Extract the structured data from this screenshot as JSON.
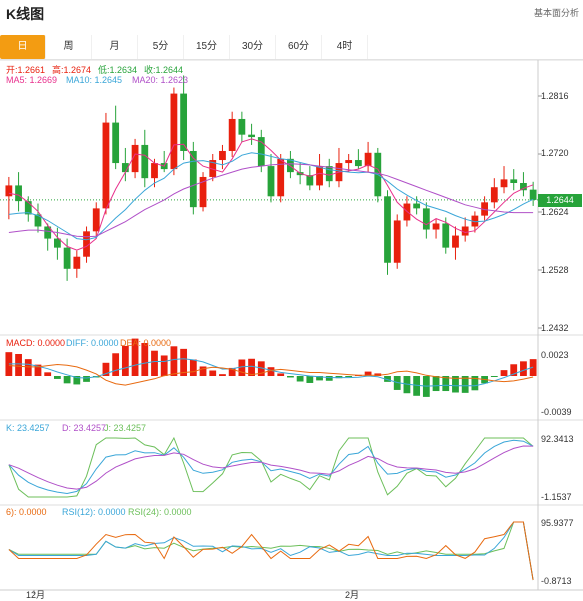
{
  "header": {
    "title": "K线图",
    "right_link": "基本面分析"
  },
  "tabs": [
    {
      "label": "日",
      "active": true
    },
    {
      "label": "周",
      "active": false
    },
    {
      "label": "月",
      "active": false
    },
    {
      "label": "5分",
      "active": false
    },
    {
      "label": "15分",
      "active": false
    },
    {
      "label": "30分",
      "active": false
    },
    {
      "label": "60分",
      "active": false
    },
    {
      "label": "4时",
      "active": false
    }
  ],
  "colors": {
    "up": "#e8200e",
    "down": "#27a33a",
    "ma5": "#e8308c",
    "ma10": "#3aa6d8",
    "ma20": "#b050c8",
    "active_tab": "#f39c12"
  },
  "ohlc": {
    "open": "开:1.2661",
    "high": "高:1.2674",
    "low": "低:1.2634",
    "close": "收:1.2644"
  },
  "ma": {
    "ma5": "MA5: 1.2669",
    "ma10": "MA10: 1.2645",
    "ma20": "MA20: 1.2623"
  },
  "price_axis": [
    "1.2816",
    "1.2720",
    "1.2624",
    "1.2528",
    "1.2432"
  ],
  "last_price": "1.2644",
  "macd": {
    "macd": "MACD: 0.0000",
    "diff": "DIFF: 0.0000",
    "dea": "DEA: 0.0000",
    "axis": [
      "0.0023",
      "-0.0039"
    ]
  },
  "kdj": {
    "k": "K: 23.4257",
    "d": "D: 23.4257",
    "j": "J: 23.4257",
    "axis": [
      "92.3413",
      "-1.1537"
    ]
  },
  "rsi": {
    "rsi6": "6): 0.0000",
    "rsi12": "RSI(12): 0.0000",
    "rsi24": "RSI(24): 0.0000",
    "axis": [
      "95.9377",
      "-0.8713"
    ]
  },
  "x_axis": [
    "12月",
    "2月"
  ],
  "chart_data": {
    "type": "candlestick",
    "price_range": [
      1.2432,
      1.2816
    ],
    "candles": [
      [
        1.265,
        1.2682,
        1.2612,
        1.2668
      ],
      [
        1.2668,
        1.269,
        1.2625,
        1.2642
      ],
      [
        1.2642,
        1.265,
        1.2608,
        1.262
      ],
      [
        1.262,
        1.2638,
        1.259,
        1.26
      ],
      [
        1.26,
        1.2605,
        1.256,
        1.258
      ],
      [
        1.258,
        1.2598,
        1.2545,
        1.2565
      ],
      [
        1.2565,
        1.258,
        1.251,
        1.253
      ],
      [
        1.253,
        1.256,
        1.2515,
        1.255
      ],
      [
        1.255,
        1.26,
        1.254,
        1.2592
      ],
      [
        1.2592,
        1.264,
        1.258,
        1.263
      ],
      [
        1.263,
        1.2788,
        1.262,
        1.2772
      ],
      [
        1.2772,
        1.28,
        1.2695,
        1.2705
      ],
      [
        1.2705,
        1.273,
        1.2675,
        1.269
      ],
      [
        1.269,
        1.2745,
        1.268,
        1.2735
      ],
      [
        1.2735,
        1.276,
        1.2665,
        1.268
      ],
      [
        1.268,
        1.2712,
        1.2665,
        1.2705
      ],
      [
        1.2705,
        1.2725,
        1.269,
        1.2695
      ],
      [
        1.2695,
        1.283,
        1.2685,
        1.282
      ],
      [
        1.282,
        1.285,
        1.271,
        1.2725
      ],
      [
        1.2725,
        1.274,
        1.262,
        1.2632
      ],
      [
        1.2632,
        1.269,
        1.2625,
        1.2682
      ],
      [
        1.2682,
        1.272,
        1.2675,
        1.271
      ],
      [
        1.271,
        1.2735,
        1.2695,
        1.2725
      ],
      [
        1.2725,
        1.279,
        1.2715,
        1.2778
      ],
      [
        1.2778,
        1.279,
        1.274,
        1.2752
      ],
      [
        1.2752,
        1.277,
        1.2735,
        1.2748
      ],
      [
        1.2748,
        1.276,
        1.269,
        1.27
      ],
      [
        1.27,
        1.272,
        1.264,
        1.265
      ],
      [
        1.265,
        1.272,
        1.264,
        1.2712
      ],
      [
        1.2712,
        1.2725,
        1.268,
        1.269
      ],
      [
        1.269,
        1.2705,
        1.267,
        1.2685
      ],
      [
        1.2685,
        1.27,
        1.266,
        1.2668
      ],
      [
        1.2668,
        1.272,
        1.266,
        1.27
      ],
      [
        1.27,
        1.2712,
        1.2665,
        1.2675
      ],
      [
        1.2675,
        1.273,
        1.2665,
        1.2705
      ],
      [
        1.2705,
        1.272,
        1.269,
        1.271
      ],
      [
        1.271,
        1.2728,
        1.2695,
        1.27
      ],
      [
        1.27,
        1.274,
        1.269,
        1.2722
      ],
      [
        1.2722,
        1.273,
        1.264,
        1.265
      ],
      [
        1.265,
        1.266,
        1.252,
        1.254
      ],
      [
        1.254,
        1.262,
        1.253,
        1.261
      ],
      [
        1.261,
        1.265,
        1.26,
        1.2638
      ],
      [
        1.2638,
        1.265,
        1.262,
        1.263
      ],
      [
        1.263,
        1.264,
        1.258,
        1.2595
      ],
      [
        1.2595,
        1.2612,
        1.258,
        1.2605
      ],
      [
        1.2605,
        1.2615,
        1.2555,
        1.2565
      ],
      [
        1.2565,
        1.26,
        1.2545,
        1.2585
      ],
      [
        1.2585,
        1.2615,
        1.2575,
        1.26
      ],
      [
        1.26,
        1.2625,
        1.259,
        1.2618
      ],
      [
        1.2618,
        1.265,
        1.261,
        1.264
      ],
      [
        1.264,
        1.268,
        1.263,
        1.2665
      ],
      [
        1.2665,
        1.27,
        1.2655,
        1.2678
      ],
      [
        1.2678,
        1.2695,
        1.266,
        1.2672
      ],
      [
        1.2672,
        1.269,
        1.265,
        1.266
      ],
      [
        1.2661,
        1.2674,
        1.2634,
        1.2644
      ]
    ],
    "ma5": [
      1.2655,
      1.2652,
      1.264,
      1.2625,
      1.2602,
      1.2582,
      1.2567,
      1.2561,
      1.2567,
      1.258,
      1.2628,
      1.2662,
      1.269,
      1.272,
      1.2718,
      1.2705,
      1.27,
      1.2735,
      1.2736,
      1.2713,
      1.27,
      1.2695,
      1.269,
      1.2712,
      1.274,
      1.2745,
      1.274,
      1.2726,
      1.271,
      1.27,
      1.2688,
      1.2683,
      1.2688,
      1.2685,
      1.269,
      1.2692,
      1.2695,
      1.2702,
      1.2695,
      1.2668,
      1.264,
      1.2625,
      1.2612,
      1.2603,
      1.2613,
      1.2607,
      1.2597,
      1.259,
      1.2593,
      1.2608,
      1.2624,
      1.264,
      1.2655,
      1.2663,
      1.2669
    ],
    "ma10": [
      1.262,
      1.2622,
      1.2623,
      1.2618,
      1.261,
      1.26,
      1.259,
      1.258,
      1.2578,
      1.2582,
      1.2598,
      1.2614,
      1.2628,
      1.2645,
      1.266,
      1.2672,
      1.268,
      1.2695,
      1.2705,
      1.2708,
      1.2709,
      1.2706,
      1.2702,
      1.2708,
      1.2718,
      1.2722,
      1.272,
      1.2716,
      1.2712,
      1.271,
      1.2706,
      1.2702,
      1.2698,
      1.2694,
      1.2692,
      1.269,
      1.2689,
      1.269,
      1.2686,
      1.2675,
      1.2662,
      1.2652,
      1.2643,
      1.2635,
      1.263,
      1.2625,
      1.2618,
      1.2612,
      1.2608,
      1.2609,
      1.2614,
      1.262,
      1.2628,
      1.2637,
      1.2645
    ],
    "ma20": [
      1.259,
      1.2592,
      1.2594,
      1.2594,
      1.2592,
      1.259,
      1.2587,
      1.2584,
      1.2583,
      1.2584,
      1.2592,
      1.26,
      1.2608,
      1.2618,
      1.2628,
      1.2636,
      1.2644,
      1.2654,
      1.2662,
      1.2668,
      1.2674,
      1.268,
      1.2685,
      1.269,
      1.2695,
      1.2698,
      1.27,
      1.2702,
      1.2703,
      1.2704,
      1.2703,
      1.2702,
      1.27,
      1.2698,
      1.2696,
      1.2694,
      1.2692,
      1.269,
      1.2688,
      1.2684,
      1.2678,
      1.2672,
      1.2666,
      1.266,
      1.2654,
      1.2648,
      1.2642,
      1.2636,
      1.2632,
      1.2628,
      1.2626,
      1.2624,
      1.2623,
      1.2623,
      1.2623
    ]
  }
}
